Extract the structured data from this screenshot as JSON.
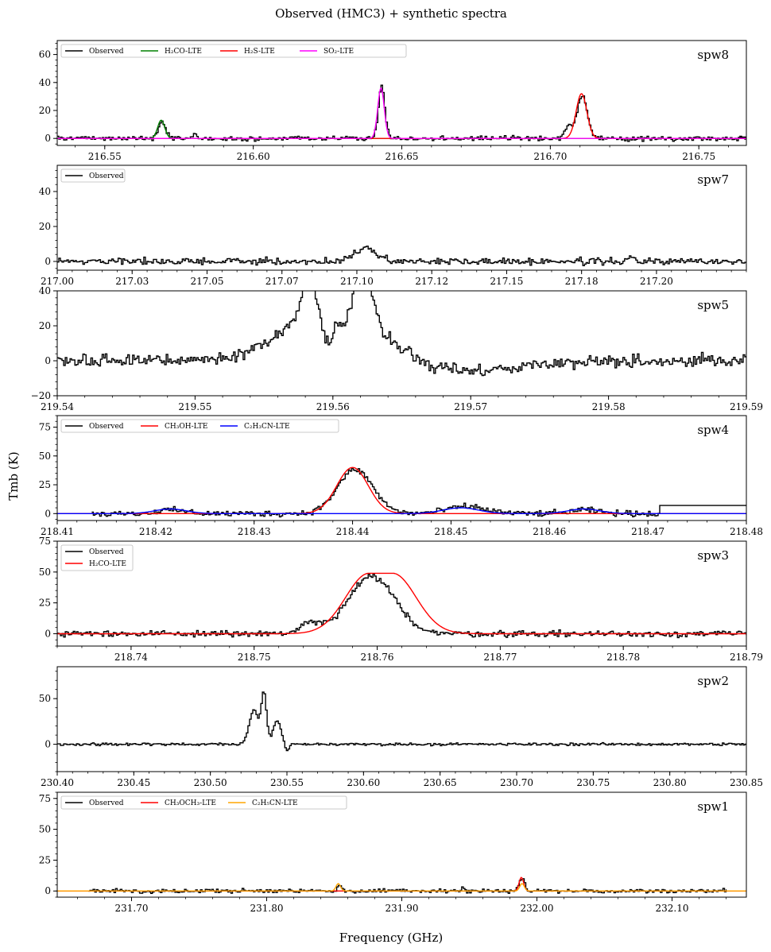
{
  "figure": {
    "title": "Observed (HMC3) + synthetic spectra",
    "xlabel": "Frequency (GHz)",
    "ylabel": "Tmb (K)"
  },
  "chart_data": [
    {
      "type": "line",
      "label": "spw8",
      "xlim": [
        216.534,
        216.766
      ],
      "ylim": [
        -5,
        70
      ],
      "xticks": [
        216.55,
        216.6,
        216.65,
        216.7,
        216.75
      ],
      "xtick_labels": [
        "216.55",
        "216.60",
        "216.65",
        "216.70",
        "216.75"
      ],
      "yticks": [
        0,
        20,
        40,
        60
      ],
      "ytick_labels": [
        "0",
        "20",
        "40",
        "60"
      ],
      "legend": [
        "Observed",
        "H₂CO-LTE",
        "H₂S-LTE",
        "SO₂-LTE"
      ],
      "legend_position": "top-left",
      "noise": 1.2,
      "baseline": 0,
      "seed": 8,
      "observed_features": [
        {
          "center": 216.569,
          "amp": 12,
          "width": 0.0012
        },
        {
          "center": 216.5795,
          "amp": 3,
          "width": 0.001
        },
        {
          "center": 216.6145,
          "amp": 2,
          "width": 0.001
        },
        {
          "center": 216.643,
          "amp": 36,
          "width": 0.0011
        },
        {
          "center": 216.7105,
          "amp": 31,
          "width": 0.0017
        },
        {
          "center": 216.706,
          "amp": 8,
          "width": 0.0012
        }
      ],
      "observed_extend_to": 216.766,
      "observed_tail_value": 1,
      "series": [
        {
          "name": "Observed",
          "color": "#000000",
          "kind": "observed"
        },
        {
          "name": "H₂CO-LTE",
          "color": "#008000",
          "features": [
            {
              "center": 216.569,
              "amp": 13,
              "width": 0.0012
            }
          ]
        },
        {
          "name": "H₂S-LTE",
          "color": "#ff0000",
          "features": [
            {
              "center": 216.7105,
              "amp": 32,
              "width": 0.0018
            }
          ]
        },
        {
          "name": "SO₂-LTE",
          "color": "#ff00ff",
          "features": [
            {
              "center": 216.643,
              "amp": 36,
              "width": 0.0011
            }
          ]
        }
      ]
    },
    {
      "type": "line",
      "label": "spw7",
      "xlim": [
        217.0,
        217.23
      ],
      "ylim": [
        -5,
        55
      ],
      "xticks": [
        217.0,
        217.025,
        217.05,
        217.075,
        217.1,
        217.125,
        217.15,
        217.175,
        217.2
      ],
      "xtick_labels": [
        "217.00",
        "217.03",
        "217.05",
        "217.07",
        "217.10",
        "217.12",
        "217.15",
        "217.18",
        "217.20"
      ],
      "yticks": [
        0,
        20,
        40
      ],
      "ytick_labels": [
        "0",
        "20",
        "40"
      ],
      "legend": [
        "Observed"
      ],
      "legend_position": "top-left",
      "noise": 1.3,
      "baseline": 0,
      "seed": 7,
      "observed_features": [
        {
          "center": 217.103,
          "amp": 7,
          "width": 0.004
        },
        {
          "center": 217.191,
          "amp": 3,
          "width": 0.0008
        }
      ],
      "series": [
        {
          "name": "Observed",
          "color": "#000000",
          "kind": "observed"
        }
      ]
    },
    {
      "type": "line",
      "label": "spw5",
      "xlim": [
        219.54,
        219.59
      ],
      "ylim": [
        -20,
        40
      ],
      "xticks": [
        219.54,
        219.55,
        219.56,
        219.57,
        219.58,
        219.59
      ],
      "xtick_labels": [
        "219.54",
        "219.55",
        "219.56",
        "219.57",
        "219.58",
        "219.59"
      ],
      "yticks": [
        -20,
        0,
        20,
        40
      ],
      "ytick_labels": [
        "−20",
        "0",
        "20",
        "40"
      ],
      "legend": [],
      "noise": 2.5,
      "baseline": 0,
      "seed": 5,
      "observed_features": [
        {
          "center": 219.56,
          "amp": 30,
          "width": 0.0034
        },
        {
          "center": 219.5582,
          "amp": 28,
          "width": 0.00045
        },
        {
          "center": 219.5622,
          "amp": 30,
          "width": 0.0006
        },
        {
          "center": 219.5596,
          "amp": -18,
          "width": 0.00045
        },
        {
          "center": 219.5608,
          "amp": -8,
          "width": 0.0004
        },
        {
          "center": 219.569,
          "amp": -6,
          "width": 0.004
        }
      ],
      "series": [
        {
          "name": "Observed",
          "color": "#000000",
          "kind": "observed"
        }
      ]
    },
    {
      "type": "line",
      "label": "spw4",
      "xlim": [
        218.41,
        218.48
      ],
      "ylim": [
        -6,
        85
      ],
      "xticks": [
        218.41,
        218.42,
        218.43,
        218.44,
        218.45,
        218.46,
        218.47,
        218.48
      ],
      "xtick_labels": [
        "218.41",
        "218.42",
        "218.43",
        "218.44",
        "218.45",
        "218.46",
        "218.47",
        "218.48"
      ],
      "yticks": [
        0,
        25,
        50,
        75
      ],
      "ytick_labels": [
        "0",
        "25",
        "50",
        "75"
      ],
      "legend": [
        "Observed",
        "CH₃OH-LTE",
        "C₂H₃CN-LTE"
      ],
      "legend_position": "top-left",
      "noise": 1.8,
      "baseline": 0,
      "seed": 4,
      "observed_start": 218.4135,
      "observed_end": 218.4712,
      "observed_tail_value": 7,
      "observed_features": [
        {
          "center": 218.4402,
          "amp": 38,
          "width": 0.0018
        },
        {
          "center": 218.4515,
          "amp": 6,
          "width": 0.002
        },
        {
          "center": 218.4215,
          "amp": 3,
          "width": 0.0015
        },
        {
          "center": 218.4635,
          "amp": 3,
          "width": 0.0015
        }
      ],
      "series": [
        {
          "name": "Observed",
          "color": "#000000",
          "kind": "observed"
        },
        {
          "name": "CH₃OH-LTE",
          "color": "#ff0000",
          "features": [
            {
              "center": 218.44,
              "amp": 40,
              "width": 0.0016
            }
          ]
        },
        {
          "name": "C₂H₃CN-LTE",
          "color": "#0000ff",
          "features": [
            {
              "center": 218.4215,
              "amp": 4,
              "width": 0.0016
            },
            {
              "center": 218.451,
              "amp": 5,
              "width": 0.0018
            },
            {
              "center": 218.4635,
              "amp": 4,
              "width": 0.0016
            }
          ]
        }
      ]
    },
    {
      "type": "line",
      "label": "spw3",
      "xlim": [
        218.734,
        218.79
      ],
      "ylim": [
        -10,
        75
      ],
      "xticks": [
        218.74,
        218.75,
        218.76,
        218.77,
        218.78,
        218.79
      ],
      "xtick_labels": [
        "218.74",
        "218.75",
        "218.76",
        "218.77",
        "218.78",
        "218.79"
      ],
      "yticks": [
        0,
        25,
        50,
        75
      ],
      "ytick_labels": [
        "0",
        "25",
        "50",
        "75"
      ],
      "legend": [
        "Observed",
        "H₂CO-LTE"
      ],
      "legend_position": "top-left",
      "noise": 1.8,
      "baseline": 0,
      "seed": 3,
      "observed_features": [
        {
          "center": 218.7595,
          "amp": 46,
          "width": 0.0019
        },
        {
          "center": 218.7545,
          "amp": 8,
          "width": 0.0008
        }
      ],
      "series": [
        {
          "name": "Observed",
          "color": "#000000",
          "kind": "observed"
        },
        {
          "name": "H₂CO-LTE",
          "color": "#ff0000",
          "features": [
            {
              "center": 218.7603,
              "amp": 49,
              "width": 0.0019,
              "flat": 3
            }
          ]
        }
      ]
    },
    {
      "type": "line",
      "label": "spw2",
      "xlim": [
        230.4,
        230.85
      ],
      "ylim": [
        -30,
        85
      ],
      "xticks": [
        230.4,
        230.45,
        230.5,
        230.55,
        230.6,
        230.65,
        230.7,
        230.75,
        230.8,
        230.85
      ],
      "xtick_labels": [
        "230.40",
        "230.45",
        "230.50",
        "230.55",
        "230.60",
        "230.65",
        "230.70",
        "230.75",
        "230.80",
        "230.85"
      ],
      "yticks": [
        0,
        50
      ],
      "ytick_labels": [
        "0",
        "50"
      ],
      "legend": [],
      "noise": 1.0,
      "baseline": 0,
      "seed": 2,
      "observed_features": [
        {
          "center": 230.528,
          "amp": 38,
          "width": 0.003
        },
        {
          "center": 230.5345,
          "amp": 55,
          "width": 0.0017
        },
        {
          "center": 230.543,
          "amp": 26,
          "width": 0.0025
        },
        {
          "center": 230.5495,
          "amp": -8,
          "width": 0.0012
        }
      ],
      "series": [
        {
          "name": "Observed",
          "color": "#000000",
          "kind": "observed"
        }
      ]
    },
    {
      "type": "line",
      "label": "spw1",
      "xlim": [
        231.645,
        232.155
      ],
      "ylim": [
        -5,
        80
      ],
      "xticks": [
        231.7,
        231.8,
        231.9,
        232.0,
        232.1
      ],
      "xtick_labels": [
        "231.70",
        "231.80",
        "231.90",
        "232.00",
        "232.10"
      ],
      "yticks": [
        0,
        25,
        50,
        75
      ],
      "ytick_labels": [
        "0",
        "25",
        "50",
        "75"
      ],
      "legend": [
        "Observed",
        "CH₃OCH₃-LTE",
        "C₂H₅CN-LTE"
      ],
      "legend_position": "top-left",
      "noise": 1.1,
      "baseline": 0,
      "seed": 1,
      "observed_start": 231.668,
      "observed_end": 232.14,
      "observed_features": [
        {
          "center": 231.853,
          "amp": 5,
          "width": 0.0016
        },
        {
          "center": 231.9885,
          "amp": 10,
          "width": 0.0018
        },
        {
          "center": 231.945,
          "amp": 3,
          "width": 0.001
        }
      ],
      "series": [
        {
          "name": "Observed",
          "color": "#000000",
          "kind": "observed"
        },
        {
          "name": "CH₃OCH₃-LTE",
          "color": "#ff0000",
          "features": [
            {
              "center": 231.9885,
              "amp": 11,
              "width": 0.0017
            }
          ]
        },
        {
          "name": "C₂H₅CN-LTE",
          "color": "#ffa500",
          "features": [
            {
              "center": 231.853,
              "amp": 6,
              "width": 0.0017
            },
            {
              "center": 231.989,
              "amp": 6,
              "width": 0.0017
            }
          ]
        }
      ]
    }
  ]
}
